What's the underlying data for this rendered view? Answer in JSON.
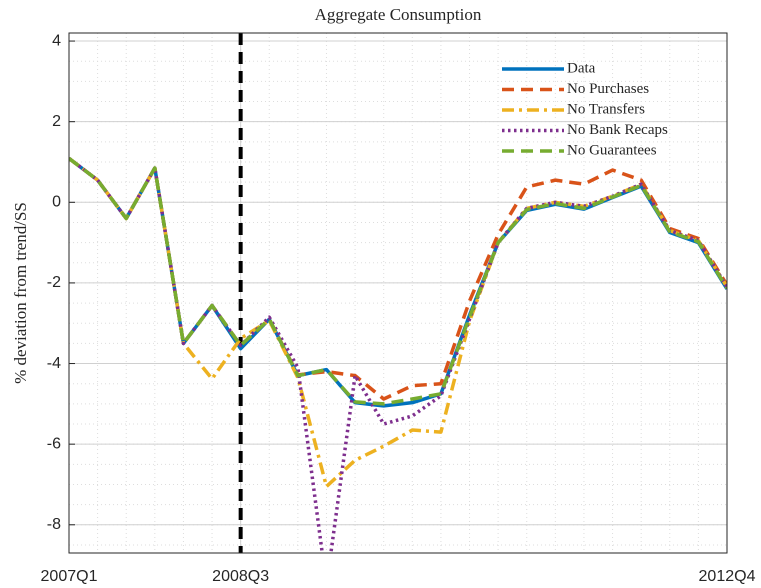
{
  "chart_data": {
    "type": "line",
    "title": "Aggregate Consumption",
    "y_label": "% deviation from trend/SS",
    "categories": [
      "2007Q1",
      null,
      null,
      null,
      null,
      null,
      "2008Q3",
      null,
      null,
      null,
      null,
      null,
      null,
      null,
      null,
      null,
      null,
      null,
      null,
      null,
      null,
      null,
      null,
      "2012Q4"
    ],
    "vline": "2008Q3",
    "ylim": [
      -8.7,
      4.2
    ],
    "yticks": [
      -8,
      -6,
      -4,
      -2,
      0,
      2,
      4
    ],
    "grid": true,
    "minor_grid": true,
    "legend": "northeast",
    "series": [
      {
        "name": "Data",
        "color": "#0072BD",
        "style": "solid",
        "values": [
          1.09,
          0.55,
          -0.4,
          0.85,
          -3.5,
          -2.56,
          -3.63,
          -2.9,
          -4.3,
          -4.15,
          -4.97,
          -5.05,
          -4.97,
          -4.75,
          -2.8,
          -1.0,
          -0.2,
          -0.05,
          -0.17,
          0.12,
          0.4,
          -0.75,
          -1.0,
          -2.15
        ]
      },
      {
        "name": "No Purchases",
        "color": "#D95319",
        "style": "dashed",
        "values": [
          1.09,
          0.55,
          -0.4,
          0.85,
          -3.5,
          -2.56,
          -3.55,
          -2.9,
          -4.28,
          -4.2,
          -4.3,
          -4.88,
          -4.55,
          -4.5,
          -2.45,
          -0.8,
          0.38,
          0.55,
          0.45,
          0.8,
          0.55,
          -0.65,
          -0.9,
          -2.05
        ]
      },
      {
        "name": "No Transfers",
        "color": "#EDB120",
        "style": "dashdot",
        "values": [
          1.09,
          0.55,
          -0.4,
          0.85,
          -3.5,
          -4.38,
          -3.38,
          -2.93,
          -4.35,
          -7.05,
          -6.4,
          -6.05,
          -5.65,
          -5.7,
          -2.95,
          -1.0,
          -0.15,
          0.0,
          -0.1,
          0.15,
          0.45,
          -0.7,
          -0.95,
          -2.1
        ]
      },
      {
        "name": "No Bank Recaps",
        "color": "#7E2F8E",
        "style": "dotted",
        "values": [
          1.09,
          0.55,
          -0.4,
          0.85,
          -3.5,
          -2.56,
          -3.55,
          -2.85,
          -4.1,
          -9.5,
          -4.3,
          -5.5,
          -5.3,
          -4.8,
          -2.9,
          -1.0,
          -0.15,
          0.0,
          -0.1,
          0.15,
          0.45,
          -0.7,
          -0.95,
          -2.1
        ]
      },
      {
        "name": "No Guarantees",
        "color": "#77AC30",
        "style": "dashed",
        "values": [
          1.09,
          0.55,
          -0.4,
          0.85,
          -3.5,
          -2.56,
          -3.55,
          -2.9,
          -4.3,
          -4.15,
          -4.95,
          -5.0,
          -4.88,
          -4.75,
          -2.85,
          -1.0,
          -0.18,
          -0.03,
          -0.15,
          0.13,
          0.42,
          -0.73,
          -0.98,
          -2.13
        ]
      }
    ]
  }
}
